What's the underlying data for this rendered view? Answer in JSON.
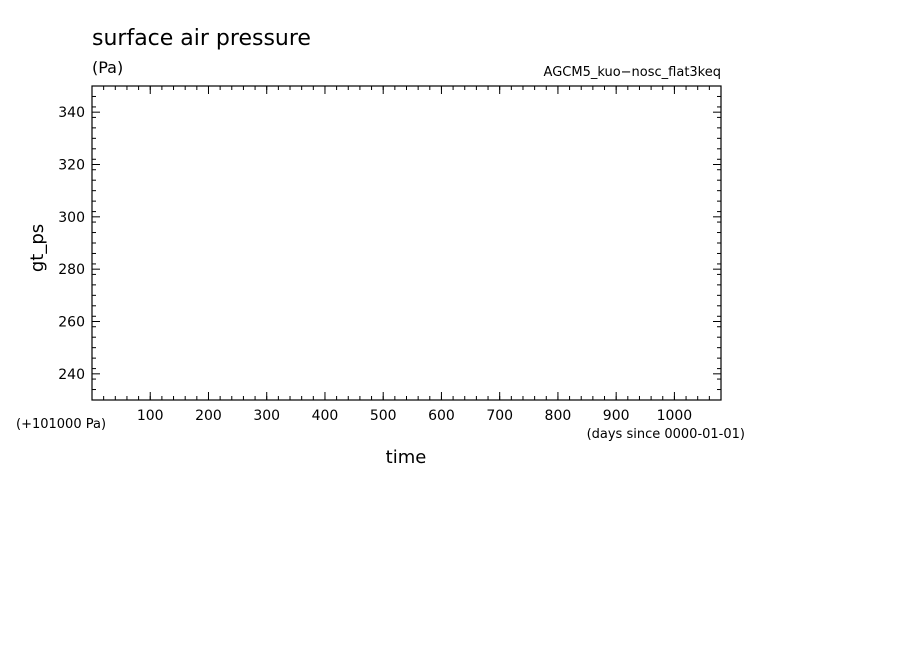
{
  "chart_data": {
    "type": "line",
    "title": "surface air pressure",
    "units": "(Pa)",
    "source": "AGCM5_kuo−nosc_flat3keq",
    "xlabel": "time",
    "x_units": "(days since 0000-01-01)",
    "ylabel": "gt_ps",
    "y_offset_label": "(+101000 Pa)",
    "xlim": [
      0,
      1080
    ],
    "ylim": [
      230,
      350
    ],
    "x_ticks": [
      100,
      200,
      300,
      400,
      500,
      600,
      700,
      800,
      900,
      1000
    ],
    "y_ticks": [
      240,
      260,
      280,
      300,
      320,
      340
    ],
    "x_minor_step": 20,
    "y_minor_step": 4,
    "series": [],
    "grid": false
  }
}
